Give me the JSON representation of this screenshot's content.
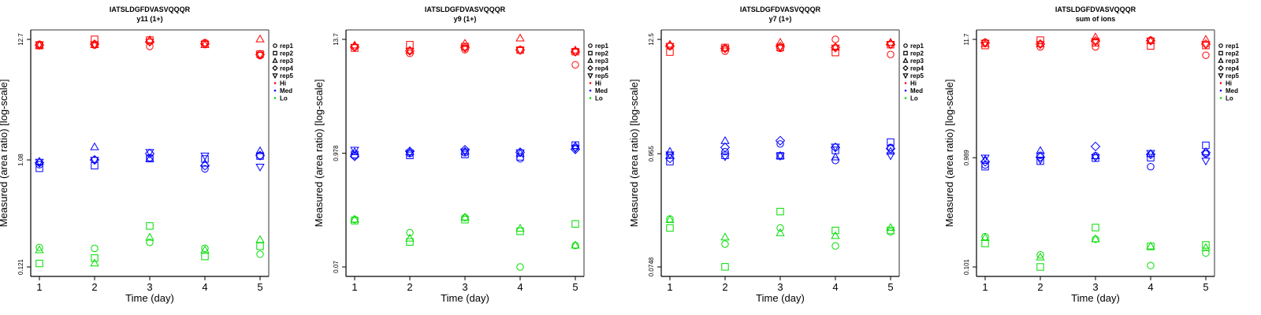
{
  "chart_data": [
    {
      "type": "scatter",
      "title": "IATSLDGFDVASVQQQR",
      "subtitle": "y11 (1+)",
      "xlabel": "Time (day)",
      "ylabel": "Measured (area ratio) [log-scale]",
      "x_ticks": [
        "1",
        "2",
        "3",
        "4",
        "5"
      ],
      "y_scale": "log",
      "y_ticks": [
        "12.7",
        "1.08",
        "0.121"
      ],
      "y_tick_values": [
        12.7,
        1.08,
        0.121
      ],
      "xlim": [
        0.85,
        5.15
      ],
      "legend": [
        "rep1",
        "rep2",
        "rep3",
        "rep4",
        "rep5",
        "Hi",
        "Med",
        "Lo"
      ],
      "legend_position": "right",
      "series": [
        {
          "name": "Hi",
          "color": "#ff0000",
          "points": {
            "rep1": [
              11.5,
              11.3,
              11.0,
              11.9,
              9.1
            ],
            "rep2": [
              11.2,
              12.7,
              12.5,
              11.5,
              9.4
            ],
            "rep3": [
              11.2,
              11.3,
              12.5,
              11.3,
              12.7
            ],
            "rep4": [
              11.3,
              11.5,
              12.1,
              11.6,
              9.3
            ],
            "rep5": [
              11.5,
              11.5,
              12.1,
              11.6,
              9.3
            ]
          }
        },
        {
          "name": "Med",
          "color": "#0000ff",
          "points": {
            "rep1": [
              0.98,
              1.08,
              1.13,
              0.9,
              1.18
            ],
            "rep2": [
              0.91,
              0.96,
              1.11,
              1.1,
              1.17
            ],
            "rep3": [
              1.04,
              1.4,
              1.1,
              1.0,
              1.29
            ],
            "rep4": [
              1.02,
              1.08,
              1.23,
              0.96,
              1.18
            ],
            "rep5": [
              1.04,
              1.08,
              1.27,
              1.18,
              0.94
            ]
          }
        },
        {
          "name": "Lo",
          "color": "#00dd00",
          "points": {
            "rep1": [
              0.18,
              0.177,
              0.2,
              0.177,
              0.157
            ],
            "rep2": [
              0.13,
              0.145,
              0.28,
              0.15,
              0.185
            ],
            "rep3": [
              0.17,
              0.13,
              0.22,
              0.17,
              0.21
            ]
          }
        }
      ]
    },
    {
      "type": "scatter",
      "title": "IATSLDGFDVASVQQQR",
      "subtitle": "y9 (1+)",
      "xlabel": "Time (day)",
      "ylabel": "Measured (area ratio) [log-scale]",
      "x_ticks": [
        "1",
        "2",
        "3",
        "4",
        "5"
      ],
      "y_scale": "log",
      "y_ticks": [
        "13.7",
        "0.978",
        "0.07"
      ],
      "y_tick_values": [
        13.7,
        0.978,
        0.07
      ],
      "xlim": [
        0.85,
        5.15
      ],
      "legend": [
        "rep1",
        "rep2",
        "rep3",
        "rep4",
        "rep5",
        "Hi",
        "Med",
        "Lo"
      ],
      "legend_position": "right",
      "series": [
        {
          "name": "Hi",
          "color": "#ff0000",
          "points": {
            "rep1": [
              11.5,
              9.9,
              10.8,
              10.7,
              7.6
            ],
            "rep2": [
              11.2,
              12.1,
              11.6,
              10.7,
              10.3
            ],
            "rep3": [
              11.9,
              10.5,
              12.4,
              14.0,
              10.6
            ],
            "rep4": [
              11.5,
              10.5,
              11.3,
              10.7,
              10.3
            ],
            "rep5": [
              11.5,
              10.5,
              11.3,
              10.7,
              10.3
            ]
          }
        },
        {
          "name": "Med",
          "color": "#0000ff",
          "points": {
            "rep1": [
              0.92,
              0.97,
              0.99,
              0.86,
              1.12
            ],
            "rep2": [
              0.95,
              0.93,
              0.95,
              0.9,
              1.18
            ],
            "rep3": [
              1.0,
              1.0,
              1.02,
              0.97,
              1.15
            ],
            "rep4": [
              0.91,
              1.02,
              1.06,
              1.0,
              1.07
            ],
            "rep5": [
              1.06,
              0.99,
              1.02,
              1.0,
              1.1
            ]
          }
        },
        {
          "name": "Lo",
          "color": "#00dd00",
          "points": {
            "rep1": [
              0.21,
              0.155,
              0.22,
              0.07,
              0.115
            ],
            "rep2": [
              0.205,
              0.125,
              0.21,
              0.16,
              0.19
            ],
            "rep3": [
              0.21,
              0.135,
              0.22,
              0.17,
              0.115
            ]
          }
        }
      ]
    },
    {
      "type": "scatter",
      "title": "IATSLDGFDVASVQQQR",
      "subtitle": "y7 (1+)",
      "xlabel": "Time (day)",
      "ylabel": "Measured (area ratio) [log-scale]",
      "x_ticks": [
        "1",
        "2",
        "3",
        "4",
        "5"
      ],
      "y_scale": "log",
      "y_ticks": [
        "12.5",
        "0.955",
        "0.0748"
      ],
      "y_tick_values": [
        12.5,
        0.955,
        0.0748
      ],
      "xlim": [
        0.85,
        5.15
      ],
      "legend": [
        "rep1",
        "rep2",
        "rep3",
        "rep4",
        "rep5",
        "Hi",
        "Med",
        "Lo"
      ],
      "legend_position": "right",
      "series": [
        {
          "name": "Hi",
          "color": "#ff0000",
          "points": {
            "rep1": [
              10.7,
              9.6,
              10.2,
              12.5,
              8.9
            ],
            "rep2": [
              9.4,
              10.4,
              10.4,
              9.3,
              11.1
            ],
            "rep3": [
              11.1,
              10.2,
              11.6,
              10.4,
              11.6
            ],
            "rep4": [
              10.8,
              10.2,
              10.6,
              10.4,
              11.2
            ],
            "rep5": [
              10.8,
              10.2,
              10.6,
              10.4,
              11.2
            ]
          }
        },
        {
          "name": "Med",
          "color": "#0000ff",
          "points": {
            "rep1": [
              0.92,
              1.0,
              1.19,
              0.82,
              1.1
            ],
            "rep2": [
              0.8,
              0.92,
              0.91,
              1.03,
              1.24
            ],
            "rep3": [
              1.0,
              1.27,
              0.91,
              0.88,
              1.0
            ],
            "rep4": [
              0.86,
              1.1,
              1.28,
              1.1,
              1.07
            ],
            "rep5": [
              0.94,
              0.9,
              0.91,
              1.12,
              0.92
            ]
          }
        },
        {
          "name": "Lo",
          "color": "#00dd00",
          "points": {
            "rep1": [
              0.22,
              0.125,
              0.18,
              0.12,
              0.165
            ],
            "rep2": [
              0.18,
              0.075,
              0.26,
              0.17,
              0.17
            ],
            "rep3": [
              0.215,
              0.145,
              0.16,
              0.15,
              0.18
            ]
          }
        }
      ]
    },
    {
      "type": "scatter",
      "title": "IATSLDGFDVASVQQQR",
      "subtitle": "sum of ions",
      "xlabel": "Time (day)",
      "ylabel": "Measured (area ratio) [log-scale]",
      "x_ticks": [
        "1",
        "2",
        "3",
        "4",
        "5"
      ],
      "y_scale": "log",
      "y_ticks": [
        "11.7",
        "0.989",
        "0.101"
      ],
      "y_tick_values": [
        11.7,
        0.989,
        0.101
      ],
      "xlim": [
        0.85,
        5.15
      ],
      "legend": [
        "rep1",
        "rep2",
        "rep3",
        "rep4",
        "rep5",
        "Hi",
        "Med",
        "Lo"
      ],
      "legend_position": "right",
      "series": [
        {
          "name": "Hi",
          "color": "#ff0000",
          "points": {
            "rep1": [
              11.0,
              10.0,
              10.0,
              11.5,
              8.4
            ],
            "rep2": [
              10.3,
              11.5,
              10.9,
              10.2,
              10.3
            ],
            "rep3": [
              10.6,
              10.6,
              12.2,
              11.3,
              11.6
            ],
            "rep4": [
              10.9,
              10.6,
              11.3,
              11.4,
              10.6
            ],
            "rep5": [
              10.9,
              10.6,
              11.3,
              11.4,
              10.6
            ]
          }
        },
        {
          "name": "Med",
          "color": "#0000ff",
          "points": {
            "rep1": [
              0.85,
              1.04,
              1.03,
              0.82,
              1.07
            ],
            "rep2": [
              0.82,
              0.92,
              0.98,
              0.99,
              1.28
            ],
            "rep3": [
              0.95,
              1.14,
              1.02,
              1.07,
              1.11
            ],
            "rep4": [
              0.91,
              1.0,
              1.25,
              1.06,
              1.1
            ],
            "rep5": [
              0.99,
              0.95,
              1.0,
              1.09,
              0.93
            ]
          }
        },
        {
          "name": "Lo",
          "color": "#00dd00",
          "points": {
            "rep1": [
              0.19,
              0.13,
              0.18,
              0.104,
              0.135
            ],
            "rep2": [
              0.165,
              0.101,
              0.23,
              0.155,
              0.16
            ],
            "rep3": [
              0.185,
              0.123,
              0.18,
              0.155,
              0.15
            ]
          }
        }
      ]
    }
  ]
}
